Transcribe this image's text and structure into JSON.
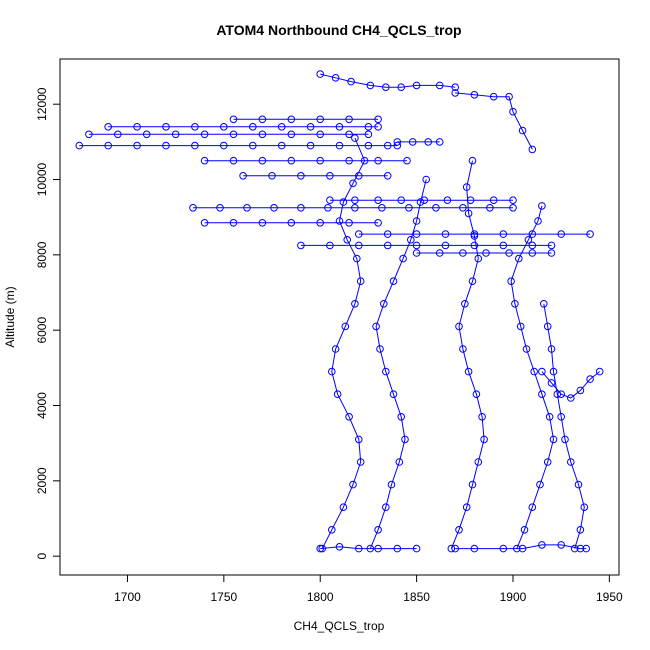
{
  "chart_data": {
    "type": "scatter",
    "title": "ATOM4 Northbound CH4_QCLS_trop",
    "xlabel": "CH4_QCLS_trop",
    "ylabel": "Altitude (m)",
    "xlim": [
      1665,
      1955
    ],
    "ylim": [
      -500,
      13200
    ],
    "x_ticks": [
      1700,
      1750,
      1800,
      1850,
      1900,
      1950
    ],
    "y_ticks": [
      0,
      2000,
      4000,
      6000,
      8000,
      10000,
      12000
    ],
    "grid": false,
    "legend": "none",
    "marker": "open-circle",
    "connected_by_lines": true,
    "color": "#0000ff",
    "series": [
      {
        "x": [
          1801,
          1806,
          1812,
          1817,
          1821,
          1820,
          1815,
          1809,
          1806,
          1808,
          1813,
          1818,
          1821,
          1819,
          1814,
          1810,
          1812,
          1817,
          1823,
          1818
        ],
        "y": [
          200,
          700,
          1300,
          1900,
          2500,
          3100,
          3700,
          4300,
          4900,
          5500,
          6100,
          6700,
          7300,
          7900,
          8400,
          8900,
          9400,
          9900,
          10500,
          11100
        ]
      },
      {
        "x": [
          1826,
          1830,
          1834,
          1837,
          1841,
          1844,
          1842,
          1838,
          1834,
          1831,
          1829,
          1833,
          1838,
          1843,
          1847,
          1850,
          1852,
          1855
        ],
        "y": [
          200,
          700,
          1300,
          1900,
          2500,
          3100,
          3700,
          4300,
          4900,
          5500,
          6100,
          6700,
          7300,
          7900,
          8400,
          8900,
          9400,
          10000
        ]
      },
      {
        "x": [
          1868,
          1872,
          1876,
          1879,
          1882,
          1885,
          1884,
          1881,
          1877,
          1874,
          1872,
          1875,
          1879,
          1882,
          1880,
          1877,
          1876,
          1879
        ],
        "y": [
          200,
          700,
          1300,
          1900,
          2500,
          3100,
          3700,
          4300,
          4900,
          5500,
          6100,
          6700,
          7300,
          7900,
          8500,
          9100,
          9800,
          10500
        ]
      },
      {
        "x": [
          1902,
          1906,
          1910,
          1914,
          1918,
          1921,
          1919,
          1915,
          1911,
          1907,
          1904,
          1901,
          1899,
          1903,
          1908,
          1913,
          1915
        ],
        "y": [
          200,
          700,
          1300,
          1900,
          2500,
          3100,
          3700,
          4300,
          4900,
          5500,
          6100,
          6700,
          7300,
          7900,
          8400,
          8900,
          9300
        ]
      },
      {
        "x": [
          1932,
          1935,
          1937,
          1934,
          1930,
          1927,
          1925,
          1923,
          1921,
          1920,
          1918,
          1916
        ],
        "y": [
          200,
          700,
          1300,
          1900,
          2500,
          3100,
          3700,
          4300,
          4900,
          5500,
          6100,
          6700
        ]
      },
      {
        "x": [
          1675,
          1690,
          1705,
          1720,
          1735,
          1750,
          1765,
          1780,
          1795,
          1810,
          1825,
          1835,
          1840
        ],
        "y": [
          10900,
          10900,
          10900,
          10900,
          10900,
          10900,
          10900,
          10900,
          10900,
          10900,
          10900,
          10900,
          10900
        ]
      },
      {
        "x": [
          1680,
          1695,
          1710,
          1725,
          1740,
          1755,
          1770,
          1785,
          1800,
          1815,
          1825
        ],
        "y": [
          11200,
          11200,
          11200,
          11200,
          11200,
          11200,
          11200,
          11200,
          11200,
          11200,
          11200
        ]
      },
      {
        "x": [
          1690,
          1705,
          1720,
          1735,
          1750,
          1765,
          1780,
          1795,
          1810,
          1825,
          1830
        ],
        "y": [
          11400,
          11400,
          11400,
          11400,
          11400,
          11400,
          11400,
          11400,
          11400,
          11400,
          11400
        ]
      },
      {
        "x": [
          1755,
          1770,
          1785,
          1800,
          1815,
          1830
        ],
        "y": [
          11600,
          11600,
          11600,
          11600,
          11600,
          11600
        ]
      },
      {
        "x": [
          1740,
          1755,
          1770,
          1785,
          1800,
          1815,
          1830,
          1845
        ],
        "y": [
          10500,
          10500,
          10500,
          10500,
          10500,
          10500,
          10500,
          10500
        ]
      },
      {
        "x": [
          1760,
          1775,
          1790,
          1805,
          1820,
          1835
        ],
        "y": [
          10100,
          10100,
          10100,
          10100,
          10100,
          10100
        ]
      },
      {
        "x": [
          1734,
          1748,
          1762,
          1776,
          1790,
          1804,
          1818,
          1832,
          1846,
          1860,
          1874,
          1888,
          1900
        ],
        "y": [
          9250,
          9250,
          9250,
          9250,
          9250,
          9250,
          9250,
          9250,
          9250,
          9250,
          9250,
          9250,
          9250
        ]
      },
      {
        "x": [
          1740,
          1755,
          1770,
          1785,
          1800,
          1815,
          1830
        ],
        "y": [
          8850,
          8850,
          8850,
          8850,
          8850,
          8850,
          8850
        ]
      },
      {
        "x": [
          1820,
          1835,
          1850,
          1865,
          1880,
          1895,
          1910,
          1925,
          1940
        ],
        "y": [
          8550,
          8550,
          8550,
          8550,
          8550,
          8550,
          8550,
          8550,
          8550
        ]
      },
      {
        "x": [
          1790,
          1805,
          1820,
          1835,
          1850,
          1865,
          1880,
          1895,
          1910,
          1920
        ],
        "y": [
          8250,
          8250,
          8250,
          8250,
          8250,
          8250,
          8250,
          8250,
          8250,
          8250
        ]
      },
      {
        "x": [
          1850,
          1862,
          1874,
          1886,
          1898,
          1910,
          1920
        ],
        "y": [
          8050,
          8050,
          8050,
          8050,
          8050,
          8050,
          8050
        ]
      },
      {
        "x": [
          1805,
          1818,
          1830,
          1842,
          1854,
          1866,
          1878,
          1890,
          1900
        ],
        "y": [
          9450,
          9450,
          9450,
          9450,
          9450,
          9450,
          9450,
          9450,
          9450
        ]
      },
      {
        "x": [
          1840,
          1848,
          1856,
          1862
        ],
        "y": [
          11000,
          11000,
          11000,
          11000
        ]
      },
      {
        "x": [
          1800,
          1808,
          1816,
          1826,
          1834,
          1842,
          1850,
          1862,
          1870
        ],
        "y": [
          12800,
          12700,
          12600,
          12500,
          12450,
          12450,
          12500,
          12500,
          12450
        ]
      },
      {
        "x": [
          1870,
          1880,
          1890,
          1898,
          1900,
          1905,
          1910
        ],
        "y": [
          12300,
          12250,
          12200,
          12200,
          11800,
          11300,
          10800
        ]
      },
      {
        "x": [
          1800,
          1810,
          1820,
          1830,
          1840,
          1850
        ],
        "y": [
          200,
          250,
          200,
          200,
          200,
          200
        ]
      },
      {
        "x": [
          1870,
          1880,
          1895,
          1905,
          1915,
          1925,
          1935,
          1938
        ],
        "y": [
          200,
          200,
          200,
          200,
          300,
          300,
          200,
          200
        ]
      },
      {
        "x": [
          1915,
          1920,
          1925,
          1930,
          1935,
          1940,
          1945
        ],
        "y": [
          4900,
          4600,
          4300,
          4200,
          4400,
          4700,
          4900
        ]
      }
    ]
  }
}
